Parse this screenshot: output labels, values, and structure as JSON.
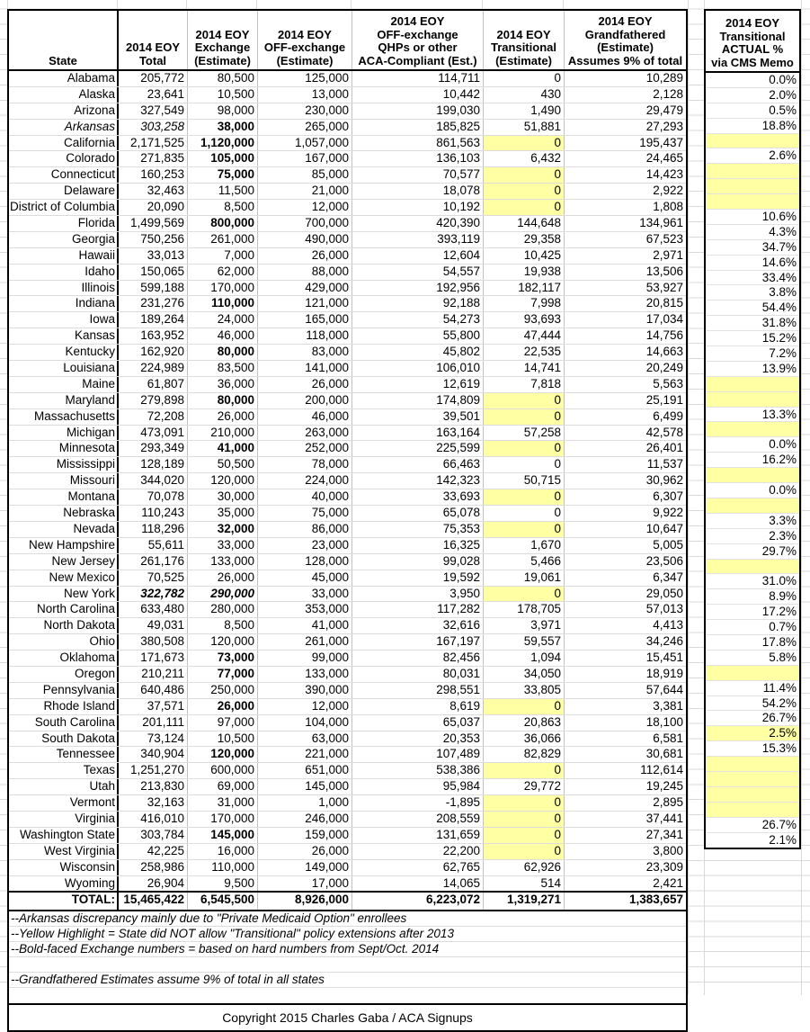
{
  "colors": {
    "highlight_yellow": "#ffffa3",
    "border_black": "#000000",
    "grid_gray": "#d9d9d9"
  },
  "main_table": {
    "header": {
      "state": "State",
      "total": "2014 EOY\nTotal",
      "exchange": "2014 EOY\nExchange\n(Estimate)",
      "off_exchange": "2014 EOY\nOFF-exchange\n(Estimate)",
      "qhp": "2014 EOY\nOFF-exchange\nQHPs or other\nACA-Compliant (Est.)",
      "transitional": "2014 EOY\nTransitional\n(Estimate)",
      "grandfathered": "2014 EOY\nGrandfathered\n(Estimate)\nAssumes 9% of total"
    },
    "rows": [
      {
        "state": "Alabama",
        "total": "205,772",
        "exchange": "80,500",
        "off": "125,000",
        "qhp": "114,711",
        "trans": "0",
        "gf": "10,289",
        "actual": "0.0%"
      },
      {
        "state": "Alaska",
        "total": "23,641",
        "exchange": "10,500",
        "off": "13,000",
        "qhp": "10,442",
        "trans": "430",
        "gf": "2,128",
        "actual": "2.0%"
      },
      {
        "state": "Arizona",
        "total": "327,549",
        "exchange": "98,000",
        "off": "230,000",
        "qhp": "199,030",
        "trans": "1,490",
        "gf": "29,479",
        "actual": "0.5%"
      },
      {
        "state": "Arkansas",
        "total": "303,258",
        "exchange": "38,000",
        "off": "265,000",
        "qhp": "185,825",
        "trans": "51,881",
        "gf": "27,293",
        "actual": "18.8%",
        "ss": "i",
        "ts": "i",
        "xs": "b"
      },
      {
        "state": "California",
        "total": "2,171,525",
        "exchange": "1,120,000",
        "off": "1,057,000",
        "qhp": "861,563",
        "trans": "0",
        "gf": "195,437",
        "actual": "",
        "xs": "b",
        "ty": true,
        "ay": true
      },
      {
        "state": "Colorado",
        "total": "271,835",
        "exchange": "105,000",
        "off": "167,000",
        "qhp": "136,103",
        "trans": "6,432",
        "gf": "24,465",
        "actual": "2.6%",
        "xs": "b"
      },
      {
        "state": "Connecticut",
        "total": "160,253",
        "exchange": "75,000",
        "off": "85,000",
        "qhp": "70,577",
        "trans": "0",
        "gf": "14,423",
        "actual": "",
        "xs": "b",
        "ty": true,
        "ay": true
      },
      {
        "state": "Delaware",
        "total": "32,463",
        "exchange": "11,500",
        "off": "21,000",
        "qhp": "18,078",
        "trans": "0",
        "gf": "2,922",
        "actual": "",
        "ty": true,
        "ay": true
      },
      {
        "state": "District of Columbia",
        "total": "20,090",
        "exchange": "8,500",
        "off": "12,000",
        "qhp": "10,192",
        "trans": "0",
        "gf": "1,808",
        "actual": "",
        "ty": true,
        "ay": true
      },
      {
        "state": "Florida",
        "total": "1,499,569",
        "exchange": "800,000",
        "off": "700,000",
        "qhp": "420,390",
        "trans": "144,648",
        "gf": "134,961",
        "actual": "10.6%",
        "xs": "b"
      },
      {
        "state": "Georgia",
        "total": "750,256",
        "exchange": "261,000",
        "off": "490,000",
        "qhp": "393,119",
        "trans": "29,358",
        "gf": "67,523",
        "actual": "4.3%"
      },
      {
        "state": "Hawaii",
        "total": "33,013",
        "exchange": "7,000",
        "off": "26,000",
        "qhp": "12,604",
        "trans": "10,425",
        "gf": "2,971",
        "actual": "34.7%"
      },
      {
        "state": "Idaho",
        "total": "150,065",
        "exchange": "62,000",
        "off": "88,000",
        "qhp": "54,557",
        "trans": "19,938",
        "gf": "13,506",
        "actual": "14.6%"
      },
      {
        "state": "Illinois",
        "total": "599,188",
        "exchange": "170,000",
        "off": "429,000",
        "qhp": "192,956",
        "trans": "182,117",
        "gf": "53,927",
        "actual": "33.4%"
      },
      {
        "state": "Indiana",
        "total": "231,276",
        "exchange": "110,000",
        "off": "121,000",
        "qhp": "92,188",
        "trans": "7,998",
        "gf": "20,815",
        "actual": "3.8%",
        "xs": "b"
      },
      {
        "state": "Iowa",
        "total": "189,264",
        "exchange": "24,000",
        "off": "165,000",
        "qhp": "54,273",
        "trans": "93,693",
        "gf": "17,034",
        "actual": "54.4%"
      },
      {
        "state": "Kansas",
        "total": "163,952",
        "exchange": "46,000",
        "off": "118,000",
        "qhp": "55,800",
        "trans": "47,444",
        "gf": "14,756",
        "actual": "31.8%"
      },
      {
        "state": "Kentucky",
        "total": "162,920",
        "exchange": "80,000",
        "off": "83,000",
        "qhp": "45,802",
        "trans": "22,535",
        "gf": "14,663",
        "actual": "15.2%",
        "xs": "b"
      },
      {
        "state": "Louisiana",
        "total": "224,989",
        "exchange": "83,500",
        "off": "141,000",
        "qhp": "106,010",
        "trans": "14,741",
        "gf": "20,249",
        "actual": "7.2%"
      },
      {
        "state": "Maine",
        "total": "61,807",
        "exchange": "36,000",
        "off": "26,000",
        "qhp": "12,619",
        "trans": "7,818",
        "gf": "5,563",
        "actual": "13.9%"
      },
      {
        "state": "Maryland",
        "total": "279,898",
        "exchange": "80,000",
        "off": "200,000",
        "qhp": "174,809",
        "trans": "0",
        "gf": "25,191",
        "actual": "",
        "xs": "b",
        "ty": true,
        "ay": true
      },
      {
        "state": "Massachusetts",
        "total": "72,208",
        "exchange": "26,000",
        "off": "46,000",
        "qhp": "39,501",
        "trans": "0",
        "gf": "6,499",
        "actual": "",
        "ty": true,
        "ay": true
      },
      {
        "state": "Michigan",
        "total": "473,091",
        "exchange": "210,000",
        "off": "263,000",
        "qhp": "163,164",
        "trans": "57,258",
        "gf": "42,578",
        "actual": "13.3%"
      },
      {
        "state": "Minnesota",
        "total": "293,349",
        "exchange": "41,000",
        "off": "252,000",
        "qhp": "225,599",
        "trans": "0",
        "gf": "26,401",
        "actual": "",
        "xs": "b",
        "ty": true,
        "ay": true
      },
      {
        "state": "Mississippi",
        "total": "128,189",
        "exchange": "50,500",
        "off": "78,000",
        "qhp": "66,463",
        "trans": "0",
        "gf": "11,537",
        "actual": "0.0%"
      },
      {
        "state": "Missouri",
        "total": "344,020",
        "exchange": "120,000",
        "off": "224,000",
        "qhp": "142,323",
        "trans": "50,715",
        "gf": "30,962",
        "actual": "16.2%"
      },
      {
        "state": "Montana",
        "total": "70,078",
        "exchange": "30,000",
        "off": "40,000",
        "qhp": "33,693",
        "trans": "0",
        "gf": "6,307",
        "actual": "",
        "ty": true,
        "ay": true
      },
      {
        "state": "Nebraska",
        "total": "110,243",
        "exchange": "35,000",
        "off": "75,000",
        "qhp": "65,078",
        "trans": "0",
        "gf": "9,922",
        "actual": "0.0%"
      },
      {
        "state": "Nevada",
        "total": "118,296",
        "exchange": "32,000",
        "off": "86,000",
        "qhp": "75,353",
        "trans": "0",
        "gf": "10,647",
        "actual": "",
        "xs": "b",
        "ty": true,
        "ay": true
      },
      {
        "state": "New Hampshire",
        "total": "55,611",
        "exchange": "33,000",
        "off": "23,000",
        "qhp": "16,325",
        "trans": "1,670",
        "gf": "5,005",
        "actual": "3.3%"
      },
      {
        "state": "New Jersey",
        "total": "261,176",
        "exchange": "133,000",
        "off": "128,000",
        "qhp": "99,028",
        "trans": "5,466",
        "gf": "23,506",
        "actual": "2.3%"
      },
      {
        "state": "New Mexico",
        "total": "70,525",
        "exchange": "26,000",
        "off": "45,000",
        "qhp": "19,592",
        "trans": "19,061",
        "gf": "6,347",
        "actual": "29.7%"
      },
      {
        "state": "New York",
        "total": "322,782",
        "exchange": "290,000",
        "off": "33,000",
        "qhp": "3,950",
        "trans": "0",
        "gf": "29,050",
        "actual": "",
        "ts": "bi",
        "xs": "bi",
        "ty": true,
        "ay": true
      },
      {
        "state": "North Carolina",
        "total": "633,480",
        "exchange": "280,000",
        "off": "353,000",
        "qhp": "117,282",
        "trans": "178,705",
        "gf": "57,013",
        "actual": "31.0%"
      },
      {
        "state": "North Dakota",
        "total": "49,031",
        "exchange": "8,500",
        "off": "41,000",
        "qhp": "32,616",
        "trans": "3,971",
        "gf": "4,413",
        "actual": "8.9%"
      },
      {
        "state": "Ohio",
        "total": "380,508",
        "exchange": "120,000",
        "off": "261,000",
        "qhp": "167,197",
        "trans": "59,557",
        "gf": "34,246",
        "actual": "17.2%"
      },
      {
        "state": "Oklahoma",
        "total": "171,673",
        "exchange": "73,000",
        "off": "99,000",
        "qhp": "82,456",
        "trans": "1,094",
        "gf": "15,451",
        "actual": "0.7%",
        "xs": "b"
      },
      {
        "state": "Oregon",
        "total": "210,211",
        "exchange": "77,000",
        "off": "133,000",
        "qhp": "80,031",
        "trans": "34,050",
        "gf": "18,919",
        "actual": "17.8%",
        "xs": "b"
      },
      {
        "state": "Pennsylvania",
        "total": "640,486",
        "exchange": "250,000",
        "off": "390,000",
        "qhp": "298,551",
        "trans": "33,805",
        "gf": "57,644",
        "actual": "5.8%"
      },
      {
        "state": "Rhode Island",
        "total": "37,571",
        "exchange": "26,000",
        "off": "12,000",
        "qhp": "8,619",
        "trans": "0",
        "gf": "3,381",
        "actual": "",
        "xs": "b",
        "ty": true,
        "ay": true
      },
      {
        "state": "South Carolina",
        "total": "201,111",
        "exchange": "97,000",
        "off": "104,000",
        "qhp": "65,037",
        "trans": "20,863",
        "gf": "18,100",
        "actual": "11.4%"
      },
      {
        "state": "South Dakota",
        "total": "73,124",
        "exchange": "10,500",
        "off": "63,000",
        "qhp": "20,353",
        "trans": "36,066",
        "gf": "6,581",
        "actual": "54.2%"
      },
      {
        "state": "Tennessee",
        "total": "340,904",
        "exchange": "120,000",
        "off": "221,000",
        "qhp": "107,489",
        "trans": "82,829",
        "gf": "30,681",
        "actual": "26.7%",
        "xs": "b"
      },
      {
        "state": "Texas",
        "total": "1,251,270",
        "exchange": "600,000",
        "off": "651,000",
        "qhp": "538,386",
        "trans": "0",
        "gf": "112,614",
        "actual": "2.5%",
        "ty": true,
        "ay": true
      },
      {
        "state": "Utah",
        "total": "213,830",
        "exchange": "69,000",
        "off": "145,000",
        "qhp": "95,984",
        "trans": "29,772",
        "gf": "19,245",
        "actual": "15.3%"
      },
      {
        "state": "Vermont",
        "total": "32,163",
        "exchange": "31,000",
        "off": "1,000",
        "qhp": "-1,895",
        "trans": "0",
        "gf": "2,895",
        "actual": "",
        "ty": true,
        "ay": true
      },
      {
        "state": "Virginia",
        "total": "416,010",
        "exchange": "170,000",
        "off": "246,000",
        "qhp": "208,559",
        "trans": "0",
        "gf": "37,441",
        "actual": "",
        "ty": true,
        "ay": true
      },
      {
        "state": "Washington State",
        "total": "303,784",
        "exchange": "145,000",
        "off": "159,000",
        "qhp": "131,659",
        "trans": "0",
        "gf": "27,341",
        "actual": "",
        "xs": "b",
        "ty": true,
        "ay": true
      },
      {
        "state": "West Virginia",
        "total": "42,225",
        "exchange": "16,000",
        "off": "26,000",
        "qhp": "22,200",
        "trans": "0",
        "gf": "3,800",
        "actual": "",
        "ty": true,
        "ay": true
      },
      {
        "state": "Wisconsin",
        "total": "258,986",
        "exchange": "110,000",
        "off": "149,000",
        "qhp": "62,765",
        "trans": "62,926",
        "gf": "23,309",
        "actual": "26.7%"
      },
      {
        "state": "Wyoming",
        "total": "26,904",
        "exchange": "9,500",
        "off": "17,000",
        "qhp": "14,065",
        "trans": "514",
        "gf": "2,421",
        "actual": "2.1%"
      }
    ],
    "total_row": {
      "label": "TOTAL:",
      "total": "15,465,422",
      "exchange": "6,545,500",
      "off_exchange": "8,926,000",
      "qhp": "6,223,072",
      "transitional": "1,319,271",
      "grandfathered": "1,383,657"
    }
  },
  "actual_table": {
    "header": "2014 EOY\nTransitional\nACTUAL %\nvia CMS Memo"
  },
  "footnotes": [
    "--Arkansas discrepancy mainly due to \"Private Medicaid Option\" enrollees",
    "--Yellow Highlight = State did NOT allow \"Transitional\" policy extensions after 2013",
    "--Bold-faced Exchange numbers = based on hard numbers from Sept/Oct. 2014",
    "",
    "--Grandfathered Estimates assume 9% of total in all states",
    ""
  ],
  "copyright": "Copyright 2015 Charles Gaba / ACA Signups"
}
